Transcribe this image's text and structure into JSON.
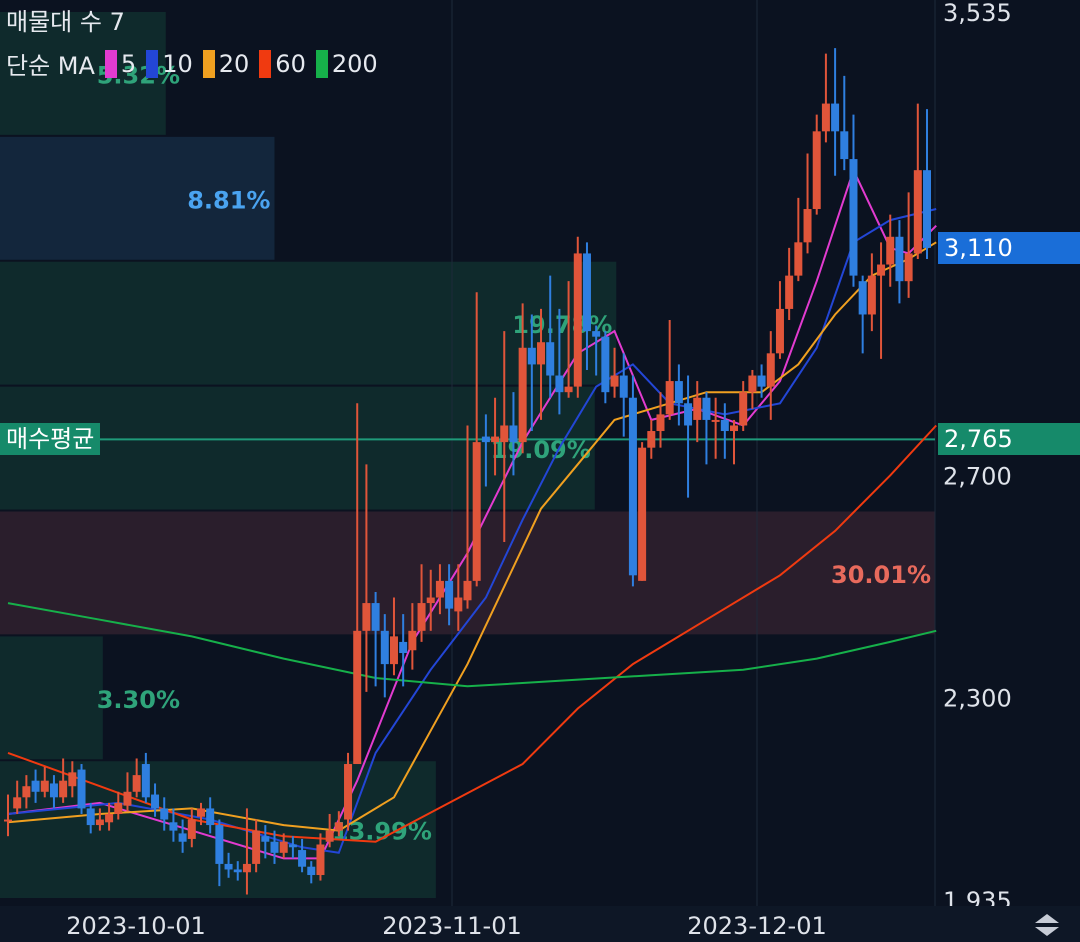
{
  "header": {
    "title": "매물대 수 7",
    "ma_prefix": "단순 MA"
  },
  "ma_legend": [
    {
      "label": "5",
      "color": "#e23bd0"
    },
    {
      "label": "10",
      "color": "#2346d6"
    },
    {
      "label": "20",
      "color": "#f0a020"
    },
    {
      "label": "60",
      "color": "#f03a10"
    },
    {
      "label": "200",
      "color": "#16b04a"
    }
  ],
  "price_tags": {
    "current": {
      "value": "3,110",
      "color": "#1a6ed8"
    },
    "avg_buy": {
      "label": "매수평균",
      "value": "2,765",
      "color": "#168a6a"
    }
  },
  "chart_data": {
    "type": "candlestick",
    "y_ticks": [
      "3,535",
      "2,700",
      "2,300",
      "1,935"
    ],
    "x_ticks": [
      "2023-10-01",
      "2023-11-01",
      "2023-12-01"
    ],
    "ylim": [
      1935,
      3535
    ],
    "avg_buy_price": 2765,
    "up_color": "#e0553a",
    "down_color": "#2f7fe0",
    "volume_profile": [
      {
        "from": 3310,
        "to": 3535,
        "label": "5.32%",
        "pct": 5.32
      },
      {
        "from": 3085,
        "to": 3310,
        "label": "8.81%",
        "pct": 8.81
      },
      {
        "from": 2860,
        "to": 3085,
        "label": "19.78%",
        "pct": 19.78
      },
      {
        "from": 2635,
        "to": 2860,
        "label": "19.09%",
        "pct": 19.09
      },
      {
        "from": 2410,
        "to": 2635,
        "label": "30.01%",
        "pct": 30.01,
        "highlight": true
      },
      {
        "from": 2185,
        "to": 2410,
        "label": "3.30%",
        "pct": 3.3
      },
      {
        "from": 1935,
        "to": 2185,
        "label": "13.99%",
        "pct": 13.99
      }
    ],
    "candles": [
      [
        2080,
        2080,
        2125,
        2050
      ],
      [
        2100,
        2120,
        2150,
        2090
      ],
      [
        2120,
        2140,
        2160,
        2100
      ],
      [
        2150,
        2130,
        2170,
        2110
      ],
      [
        2130,
        2150,
        2175,
        2120
      ],
      [
        2145,
        2120,
        2160,
        2100
      ],
      [
        2120,
        2150,
        2190,
        2110
      ],
      [
        2140,
        2165,
        2185,
        2120
      ],
      [
        2170,
        2100,
        2180,
        2090
      ],
      [
        2100,
        2070,
        2110,
        2055
      ],
      [
        2070,
        2080,
        2100,
        2060
      ],
      [
        2075,
        2090,
        2110,
        2060
      ],
      [
        2090,
        2110,
        2130,
        2080
      ],
      [
        2105,
        2130,
        2165,
        2095
      ],
      [
        2130,
        2160,
        2190,
        2120
      ],
      [
        2180,
        2120,
        2200,
        2110
      ],
      [
        2125,
        2100,
        2145,
        2085
      ],
      [
        2100,
        2080,
        2120,
        2060
      ],
      [
        2075,
        2060,
        2100,
        2040
      ],
      [
        2055,
        2040,
        2080,
        2020
      ],
      [
        2045,
        2080,
        2100,
        2030
      ],
      [
        2085,
        2100,
        2110,
        2070
      ],
      [
        2100,
        2070,
        2120,
        2055
      ],
      [
        2070,
        2000,
        2080,
        1960
      ],
      [
        2000,
        1990,
        2020,
        1975
      ],
      [
        1990,
        1985,
        2005,
        1970
      ],
      [
        1985,
        2000,
        2100,
        1945
      ],
      [
        2000,
        2060,
        2080,
        1985
      ],
      [
        2050,
        2040,
        2070,
        2010
      ],
      [
        2040,
        2020,
        2060,
        2000
      ],
      [
        2020,
        2040,
        2055,
        2010
      ],
      [
        2035,
        2030,
        2050,
        2010
      ],
      [
        2025,
        1995,
        2045,
        1985
      ],
      [
        1995,
        1980,
        2005,
        1965
      ],
      [
        1980,
        2035,
        2055,
        1970
      ],
      [
        2040,
        2060,
        2090,
        2030
      ],
      [
        2060,
        2075,
        2095,
        2050
      ],
      [
        2080,
        2180,
        2200,
        2060
      ],
      [
        2180,
        2420,
        2830,
        2180
      ],
      [
        2420,
        2470,
        2720,
        2310
      ],
      [
        2470,
        2420,
        2490,
        2320
      ],
      [
        2420,
        2360,
        2450,
        2300
      ],
      [
        2360,
        2410,
        2480,
        2340
      ],
      [
        2400,
        2380,
        2450,
        2320
      ],
      [
        2385,
        2420,
        2470,
        2350
      ],
      [
        2420,
        2470,
        2540,
        2400
      ],
      [
        2470,
        2480,
        2530,
        2420
      ],
      [
        2480,
        2510,
        2540,
        2450
      ],
      [
        2510,
        2460,
        2540,
        2430
      ],
      [
        2455,
        2480,
        2540,
        2420
      ],
      [
        2475,
        2510,
        2790,
        2460
      ],
      [
        2510,
        2760,
        3030,
        2500
      ],
      [
        2770,
        2760,
        2810,
        2680
      ],
      [
        2760,
        2770,
        2840,
        2700
      ],
      [
        2760,
        2790,
        2960,
        2580
      ],
      [
        2790,
        2760,
        2850,
        2700
      ],
      [
        2760,
        2930,
        3010,
        2740
      ],
      [
        2930,
        2900,
        2990,
        2780
      ],
      [
        2900,
        2940,
        3000,
        2800
      ],
      [
        2940,
        2880,
        3060,
        2840
      ],
      [
        2880,
        2850,
        3000,
        2810
      ],
      [
        2850,
        2860,
        3050,
        2840
      ],
      [
        2860,
        3100,
        3130,
        2840
      ],
      [
        3100,
        2960,
        3120,
        2890
      ],
      [
        2960,
        2950,
        2970,
        2880
      ],
      [
        2950,
        2850,
        2960,
        2830
      ],
      [
        2860,
        2880,
        2930,
        2840
      ],
      [
        2880,
        2840,
        2920,
        2770
      ],
      [
        2840,
        2520,
        2880,
        2500
      ],
      [
        2510,
        2750,
        2760,
        2510
      ],
      [
        2750,
        2780,
        2800,
        2730
      ],
      [
        2780,
        2810,
        2850,
        2750
      ],
      [
        2810,
        2870,
        2980,
        2800
      ],
      [
        2870,
        2830,
        2900,
        2790
      ],
      [
        2830,
        2790,
        2880,
        2660
      ],
      [
        2800,
        2840,
        2870,
        2760
      ],
      [
        2840,
        2800,
        2850,
        2720
      ],
      [
        2800,
        2800,
        2840,
        2730
      ],
      [
        2800,
        2780,
        2830,
        2730
      ],
      [
        2780,
        2790,
        2800,
        2720
      ],
      [
        2790,
        2850,
        2870,
        2780
      ],
      [
        2850,
        2880,
        2890,
        2820
      ],
      [
        2880,
        2860,
        2900,
        2840
      ],
      [
        2860,
        2920,
        2960,
        2800
      ],
      [
        2920,
        3000,
        3050,
        2910
      ],
      [
        3000,
        3060,
        3110,
        2980
      ],
      [
        3060,
        3120,
        3200,
        3050
      ],
      [
        3120,
        3180,
        3280,
        3100
      ],
      [
        3180,
        3320,
        3350,
        3170
      ],
      [
        3320,
        3370,
        3460,
        3300
      ],
      [
        3370,
        3320,
        3470,
        3240
      ],
      [
        3320,
        3270,
        3420,
        3250
      ],
      [
        3270,
        3060,
        3350,
        3040
      ],
      [
        3050,
        2990,
        3060,
        2920
      ],
      [
        2990,
        3060,
        3100,
        2960
      ],
      [
        3060,
        3080,
        3120,
        2910
      ],
      [
        3080,
        3130,
        3170,
        3040
      ],
      [
        3130,
        3050,
        3160,
        3010
      ],
      [
        3050,
        3100,
        3210,
        3020
      ],
      [
        3100,
        3250,
        3370,
        3090
      ],
      [
        3250,
        3110,
        3360,
        3090
      ]
    ],
    "ma_lines": [
      {
        "period": "5",
        "color": "#e23bd0",
        "points": [
          [
            0,
            2090
          ],
          [
            10,
            2110
          ],
          [
            20,
            2060
          ],
          [
            30,
            2010
          ],
          [
            34,
            2010
          ],
          [
            38,
            2150
          ],
          [
            44,
            2400
          ],
          [
            50,
            2560
          ],
          [
            56,
            2760
          ],
          [
            62,
            2920
          ],
          [
            66,
            2960
          ],
          [
            70,
            2800
          ],
          [
            75,
            2820
          ],
          [
            80,
            2790
          ],
          [
            84,
            2870
          ],
          [
            88,
            3050
          ],
          [
            92,
            3250
          ],
          [
            96,
            3110
          ],
          [
            98,
            3100
          ],
          [
            101,
            3150
          ]
        ]
      },
      {
        "period": "10",
        "color": "#2346d6",
        "points": [
          [
            0,
            2090
          ],
          [
            12,
            2110
          ],
          [
            22,
            2080
          ],
          [
            32,
            2030
          ],
          [
            36,
            2020
          ],
          [
            40,
            2200
          ],
          [
            46,
            2350
          ],
          [
            52,
            2480
          ],
          [
            56,
            2620
          ],
          [
            60,
            2750
          ],
          [
            64,
            2860
          ],
          [
            68,
            2900
          ],
          [
            72,
            2830
          ],
          [
            78,
            2810
          ],
          [
            84,
            2830
          ],
          [
            88,
            2930
          ],
          [
            92,
            3120
          ],
          [
            96,
            3160
          ],
          [
            101,
            3180
          ]
        ]
      },
      {
        "period": "20",
        "color": "#f0a020",
        "points": [
          [
            0,
            2075
          ],
          [
            10,
            2090
          ],
          [
            20,
            2100
          ],
          [
            30,
            2070
          ],
          [
            36,
            2060
          ],
          [
            42,
            2120
          ],
          [
            46,
            2240
          ],
          [
            50,
            2360
          ],
          [
            54,
            2500
          ],
          [
            58,
            2640
          ],
          [
            62,
            2720
          ],
          [
            66,
            2800
          ],
          [
            70,
            2820
          ],
          [
            76,
            2850
          ],
          [
            82,
            2850
          ],
          [
            86,
            2900
          ],
          [
            90,
            2990
          ],
          [
            94,
            3060
          ],
          [
            98,
            3090
          ],
          [
            101,
            3120
          ]
        ]
      },
      {
        "period": "60",
        "color": "#f03a10",
        "points": [
          [
            0,
            2200
          ],
          [
            10,
            2140
          ],
          [
            20,
            2080
          ],
          [
            30,
            2050
          ],
          [
            40,
            2040
          ],
          [
            48,
            2110
          ],
          [
            56,
            2180
          ],
          [
            62,
            2280
          ],
          [
            68,
            2360
          ],
          [
            76,
            2440
          ],
          [
            84,
            2520
          ],
          [
            90,
            2600
          ],
          [
            96,
            2700
          ],
          [
            101,
            2790
          ]
        ]
      },
      {
        "period": "200",
        "color": "#16b04a",
        "points": [
          [
            0,
            2470
          ],
          [
            10,
            2440
          ],
          [
            20,
            2410
          ],
          [
            30,
            2370
          ],
          [
            40,
            2335
          ],
          [
            50,
            2320
          ],
          [
            60,
            2330
          ],
          [
            70,
            2340
          ],
          [
            80,
            2350
          ],
          [
            88,
            2370
          ],
          [
            96,
            2400
          ],
          [
            101,
            2420
          ]
        ]
      }
    ]
  }
}
